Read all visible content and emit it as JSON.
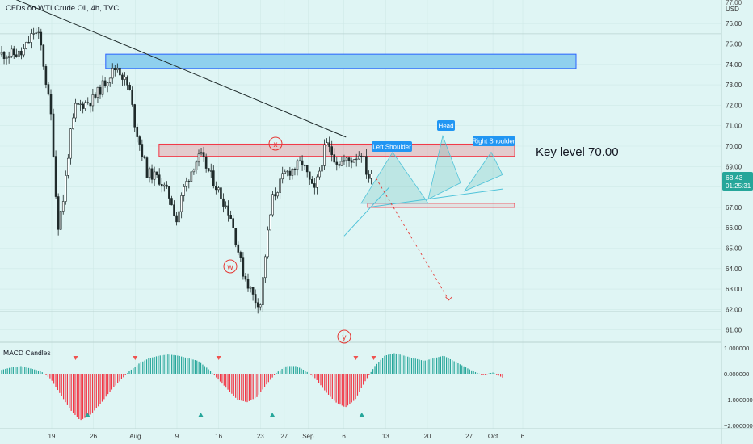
{
  "header": {
    "title": "CFDs on WTI Crude Oil, 4h, TVC"
  },
  "price_axis": {
    "currency": "USD",
    "partial_top": "77.00",
    "ticks": [
      "76.00",
      "75.00",
      "74.00",
      "73.00",
      "72.00",
      "71.00",
      "70.00",
      "69.00",
      "68.00",
      "67.00",
      "66.00",
      "65.00",
      "64.00",
      "63.00",
      "62.00",
      "61.00"
    ],
    "last_price": "68.43",
    "countdown": "01:25:31"
  },
  "macd_axis": {
    "ticks": [
      "1.000000",
      "0.000000",
      "−1.000000",
      "−2.000000"
    ]
  },
  "time_axis": {
    "ticks": [
      "19",
      "26",
      "Aug",
      "9",
      "16",
      "23",
      "27",
      "Sep",
      "6",
      "13",
      "20",
      "27",
      "Oct",
      "6"
    ]
  },
  "indicator": {
    "name": "MACD Candles"
  },
  "annotations": {
    "key_level": "Key level 70.00",
    "left_shoulder": "Left Shoulder",
    "head": "Head",
    "right_shoulder": "Right Shoulder",
    "wave_w": "w",
    "wave_x": "x",
    "wave_y": "y"
  },
  "colors": {
    "background": "#dff5f4",
    "bull": "#26a69a",
    "bear": "#ef5350",
    "candle": "#1e2a2a",
    "macd_pos": "#26a69a",
    "macd_neg": "#f23645",
    "zone_blue": "#2962ff",
    "zone_red": "#f23645",
    "label_blue": "#2196f3",
    "price_badge": "#26a69a"
  },
  "chart_data": [
    {
      "type": "candlestick",
      "title": "CFDs on WTI Crude Oil, 4h, TVC",
      "ylabel": "USD",
      "ylim": [
        61,
        77
      ],
      "x_ticks": [
        "19",
        "26",
        "Aug",
        "9",
        "16",
        "23",
        "27",
        "Sep",
        "6",
        "13",
        "20",
        "27",
        "Oct",
        "6"
      ],
      "last_price": 68.43,
      "price_path": [
        {
          "x": "Jul 14",
          "y": 74.5
        },
        {
          "x": "Jul 16",
          "y": 75.6
        },
        {
          "x": "Jul 17",
          "y": 75.3
        },
        {
          "x": "Jul 19",
          "y": 71.2
        },
        {
          "x": "Jul 20",
          "y": 66.0
        },
        {
          "x": "Jul 21",
          "y": 67.5
        },
        {
          "x": "Jul 22",
          "y": 70.3
        },
        {
          "x": "Jul 23",
          "y": 71.9
        },
        {
          "x": "Jul 26",
          "y": 72.3
        },
        {
          "x": "Jul 29",
          "y": 73.6
        },
        {
          "x": "Jul 30",
          "y": 73.9
        },
        {
          "x": "Aug 1",
          "y": 72.8
        },
        {
          "x": "Aug 2",
          "y": 71.0
        },
        {
          "x": "Aug 4",
          "y": 68.7
        },
        {
          "x": "Aug 6",
          "y": 68.4
        },
        {
          "x": "Aug 8",
          "y": 67.4
        },
        {
          "x": "Aug 9",
          "y": 66.3
        },
        {
          "x": "Aug 10",
          "y": 67.8
        },
        {
          "x": "Aug 12",
          "y": 69.2
        },
        {
          "x": "Aug 13",
          "y": 69.5
        },
        {
          "x": "Aug 16",
          "y": 67.8
        },
        {
          "x": "Aug 18",
          "y": 66.6
        },
        {
          "x": "Aug 20",
          "y": 63.9
        },
        {
          "x": "Aug 22",
          "y": 62.5
        },
        {
          "x": "Aug 23",
          "y": 62.3
        },
        {
          "x": "Aug 24",
          "y": 65.2
        },
        {
          "x": "Aug 25",
          "y": 67.4
        },
        {
          "x": "Aug 27",
          "y": 68.6
        },
        {
          "x": "Aug 30",
          "y": 69.2
        },
        {
          "x": "Sep 1",
          "y": 67.7
        },
        {
          "x": "Sep 3",
          "y": 70.1
        },
        {
          "x": "Sep 5",
          "y": 69.2
        },
        {
          "x": "Sep 7",
          "y": 69.3
        },
        {
          "x": "Sep 9",
          "y": 69.7
        },
        {
          "x": "Sep 10",
          "y": 68.5
        },
        {
          "x": "Sep 11",
          "y": 68.43
        }
      ],
      "trendline": {
        "from": {
          "x": "Jul 14",
          "y": 77.5
        },
        "to": {
          "x": "Sep 5",
          "y": 70.4
        }
      },
      "zones": [
        {
          "name": "resistance-zone-blue",
          "y_low": 73.8,
          "y_high": 74.5
        },
        {
          "name": "key-level-zone-red",
          "y_low": 69.5,
          "y_high": 70.1
        },
        {
          "name": "neckline-zone",
          "y_low": 67.0,
          "y_high": 67.2
        }
      ],
      "horizontal_lines": [
        75.5,
        68.43,
        61.9
      ],
      "projection": {
        "from": {
          "x": "Sep 13",
          "y": 68.2
        },
        "to": {
          "x": "Sep 24",
          "y": 62.3
        }
      }
    },
    {
      "type": "bar",
      "title": "MACD Candles",
      "ylim": [
        -2.0,
        1.0
      ],
      "x_ticks": [
        "19",
        "26",
        "Aug",
        "9",
        "16",
        "23",
        "27",
        "Sep",
        "6",
        "13",
        "20",
        "27",
        "Oct",
        "6"
      ],
      "series": [
        {
          "name": "MACD Candles",
          "values": [
            0.15,
            0.25,
            0.3,
            0.2,
            0.1,
            -0.2,
            -0.8,
            -1.4,
            -1.8,
            -1.6,
            -1.2,
            -0.7,
            -0.3,
            0.1,
            0.4,
            0.6,
            0.7,
            0.75,
            0.7,
            0.6,
            0.5,
            0.2,
            -0.2,
            -0.6,
            -1.0,
            -1.1,
            -0.9,
            -0.4,
            0.05,
            0.3,
            0.3,
            0.1,
            -0.2,
            -0.7,
            -1.1,
            -1.3,
            -1.0,
            -0.3,
            0.3,
            0.7,
            0.8,
            0.7,
            0.6,
            0.5,
            0.6,
            0.7,
            0.5,
            0.3,
            0.1,
            -0.05,
            0.05,
            -0.15
          ]
        }
      ],
      "signals_down": [
        "Jul 23",
        "Aug 2",
        "Aug 16",
        "Sep 8",
        "Sep 11"
      ],
      "signals_up": [
        "Jul 25",
        "Aug 13",
        "Aug 25",
        "Sep 9"
      ]
    }
  ]
}
